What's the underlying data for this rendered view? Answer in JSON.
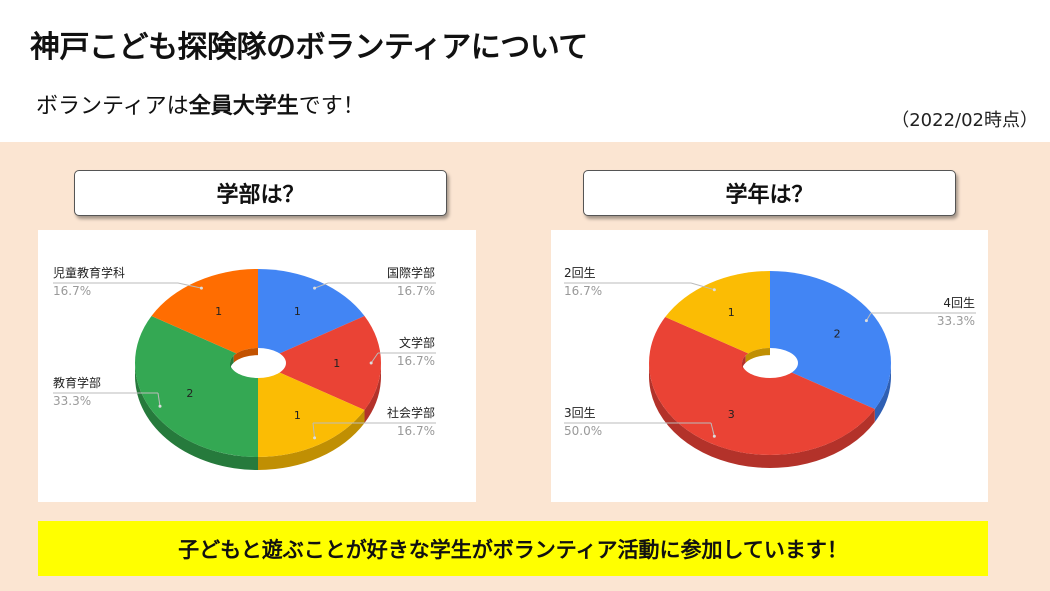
{
  "header": {
    "title": "神戸こども探険隊のボランティアについて",
    "subtitle_pre": "ボランティアは",
    "subtitle_bold": "全員大学生",
    "subtitle_post": "です！",
    "date": "（2022/02時点）"
  },
  "panels": {
    "left_question": "学部は？",
    "right_question": "学年は？"
  },
  "banner": {
    "text": "子どもと遊ぶことが好きな学生がボランティア活動に参加しています！"
  },
  "chart_data": [
    {
      "type": "pie",
      "title": "学部は？",
      "slices": [
        {
          "name": "国際学部",
          "value": 1,
          "percent": "16.7%",
          "color": "#4285f4",
          "side_color": "#2f5fb3"
        },
        {
          "name": "文学部",
          "value": 1,
          "percent": "16.7%",
          "color": "#ea4335",
          "side_color": "#b3322a"
        },
        {
          "name": "社会学部",
          "value": 1,
          "percent": "16.7%",
          "color": "#fbbc04",
          "side_color": "#c08f03"
        },
        {
          "name": "教育学部",
          "value": 2,
          "percent": "33.3%",
          "color": "#34a853",
          "side_color": "#267a3c"
        },
        {
          "name": "児童教育学科",
          "value": 1,
          "percent": "16.7%",
          "color": "#ff6d01",
          "side_color": "#c25200"
        }
      ]
    },
    {
      "type": "pie",
      "title": "学年は？",
      "slices": [
        {
          "name": "4回生",
          "value": 2,
          "percent": "33.3%",
          "color": "#4285f4",
          "side_color": "#2f5fb3"
        },
        {
          "name": "3回生",
          "value": 3,
          "percent": "50.0%",
          "color": "#ea4335",
          "side_color": "#b3322a"
        },
        {
          "name": "2回生",
          "value": 1,
          "percent": "16.7%",
          "color": "#fbbc04",
          "side_color": "#c08f03"
        }
      ]
    }
  ]
}
